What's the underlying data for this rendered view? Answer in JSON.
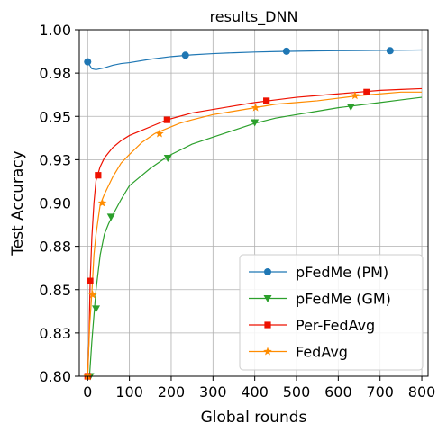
{
  "chart_data": {
    "type": "line",
    "title": "results_DNN",
    "xlabel": "Global rounds",
    "ylabel": "Test Accuracy",
    "xlim": [
      -20,
      815
    ],
    "ylim": [
      0.8,
      1.0
    ],
    "xticks": [
      0,
      100,
      200,
      300,
      400,
      500,
      600,
      700,
      800
    ],
    "xtick_labels": [
      "0",
      "100",
      "200",
      "300",
      "400",
      "500",
      "600",
      "700",
      "800"
    ],
    "yticks": [
      0.8,
      0.825,
      0.85,
      0.875,
      0.9,
      0.925,
      0.95,
      0.975,
      1.0
    ],
    "ytick_labels": [
      "0.80",
      "0.83",
      "0.85",
      "0.88",
      "0.90",
      "0.93",
      "0.95",
      "0.98",
      "1.00"
    ],
    "grid": true,
    "legend_position": "lower-right",
    "series": [
      {
        "name": "pFedMe (PM)",
        "color": "#1f77b4",
        "marker": "circle",
        "x": [
          0,
          10,
          20,
          40,
          60,
          80,
          100,
          150,
          200,
          250,
          300,
          350,
          400,
          450,
          500,
          550,
          600,
          650,
          700,
          750,
          800
        ],
        "y": [
          0.9815,
          0.9775,
          0.977,
          0.978,
          0.9795,
          0.9805,
          0.981,
          0.983,
          0.9845,
          0.9855,
          0.9862,
          0.9867,
          0.9871,
          0.9874,
          0.9876,
          0.9878,
          0.9879,
          0.988,
          0.9881,
          0.9882,
          0.9883
        ],
        "marker_x": [
          0,
          234,
          476,
          724
        ],
        "marker_y": [
          0.9815,
          0.9853,
          0.9876,
          0.9879
        ]
      },
      {
        "name": "pFedMe (GM)",
        "color": "#2ca02c",
        "marker": "triangle-down",
        "x": [
          0,
          5,
          10,
          15,
          20,
          30,
          40,
          50,
          60,
          80,
          100,
          120,
          150,
          180,
          200,
          250,
          300,
          350,
          400,
          450,
          500,
          550,
          600,
          650,
          700,
          750,
          800
        ],
        "y": [
          0.8,
          0.802,
          0.82,
          0.835,
          0.85,
          0.87,
          0.882,
          0.888,
          0.893,
          0.902,
          0.91,
          0.914,
          0.92,
          0.925,
          0.928,
          0.934,
          0.938,
          0.942,
          0.946,
          0.949,
          0.951,
          0.953,
          0.955,
          0.9565,
          0.958,
          0.9595,
          0.961
        ],
        "marker_x": [
          6,
          20,
          56,
          192,
          400,
          630
        ],
        "marker_y": [
          0.8,
          0.839,
          0.892,
          0.926,
          0.9465,
          0.9555
        ]
      },
      {
        "name": "Per-FedAvg",
        "color": "#ee1100",
        "marker": "square",
        "x": [
          0,
          3,
          6,
          10,
          15,
          20,
          30,
          40,
          50,
          60,
          80,
          100,
          130,
          160,
          190,
          220,
          250,
          300,
          350,
          400,
          450,
          500,
          550,
          600,
          650,
          700,
          750,
          800
        ],
        "y": [
          0.8,
          0.82,
          0.855,
          0.88,
          0.9,
          0.913,
          0.921,
          0.926,
          0.929,
          0.932,
          0.936,
          0.939,
          0.942,
          0.945,
          0.948,
          0.95,
          0.952,
          0.954,
          0.956,
          0.958,
          0.9595,
          0.961,
          0.962,
          0.963,
          0.964,
          0.965,
          0.9655,
          0.966
        ],
        "marker_x": [
          0,
          6,
          25,
          190,
          428,
          668
        ],
        "marker_y": [
          0.8,
          0.855,
          0.916,
          0.948,
          0.959,
          0.964
        ]
      },
      {
        "name": "FedAvg",
        "color": "#ff8c00",
        "marker": "star",
        "x": [
          0,
          5,
          10,
          15,
          20,
          30,
          40,
          50,
          60,
          80,
          100,
          130,
          160,
          190,
          220,
          250,
          300,
          350,
          400,
          450,
          500,
          550,
          600,
          650,
          700,
          750,
          800
        ],
        "y": [
          0.8,
          0.83,
          0.848,
          0.87,
          0.882,
          0.899,
          0.905,
          0.91,
          0.915,
          0.923,
          0.928,
          0.935,
          0.94,
          0.943,
          0.946,
          0.948,
          0.951,
          0.953,
          0.955,
          0.957,
          0.958,
          0.959,
          0.9605,
          0.962,
          0.963,
          0.964,
          0.964
        ],
        "marker_x": [
          0,
          12,
          35,
          172,
          402,
          640
        ],
        "marker_y": [
          0.8,
          0.847,
          0.9,
          0.94,
          0.955,
          0.962
        ]
      }
    ]
  }
}
